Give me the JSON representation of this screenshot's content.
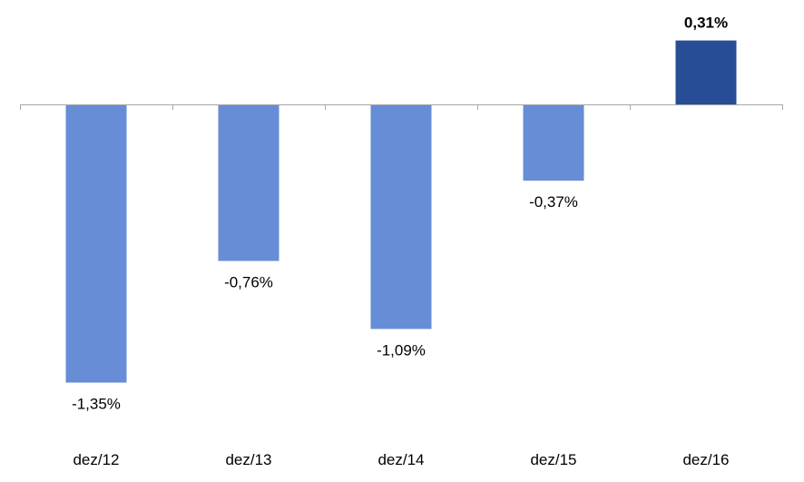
{
  "chart_data": {
    "type": "bar",
    "title": "",
    "xlabel": "",
    "ylabel": "",
    "categories": [
      "dez/12",
      "dez/13",
      "dez/14",
      "dez/15",
      "dez/16"
    ],
    "values": [
      -1.35,
      -0.76,
      -1.09,
      -0.37,
      0.31
    ],
    "data_labels": [
      "-1,35%",
      "-0,76%",
      "-1,09%",
      "-0,37%",
      "0,31%"
    ],
    "ylim": [
      -1.6,
      0.5
    ],
    "grid": false,
    "legend": "none",
    "highlighted_index": 4,
    "colors": {
      "bar": "#678dd6",
      "highlight_bar": "#264d96",
      "axis": "#a6a6a6",
      "text": "#000000"
    }
  }
}
